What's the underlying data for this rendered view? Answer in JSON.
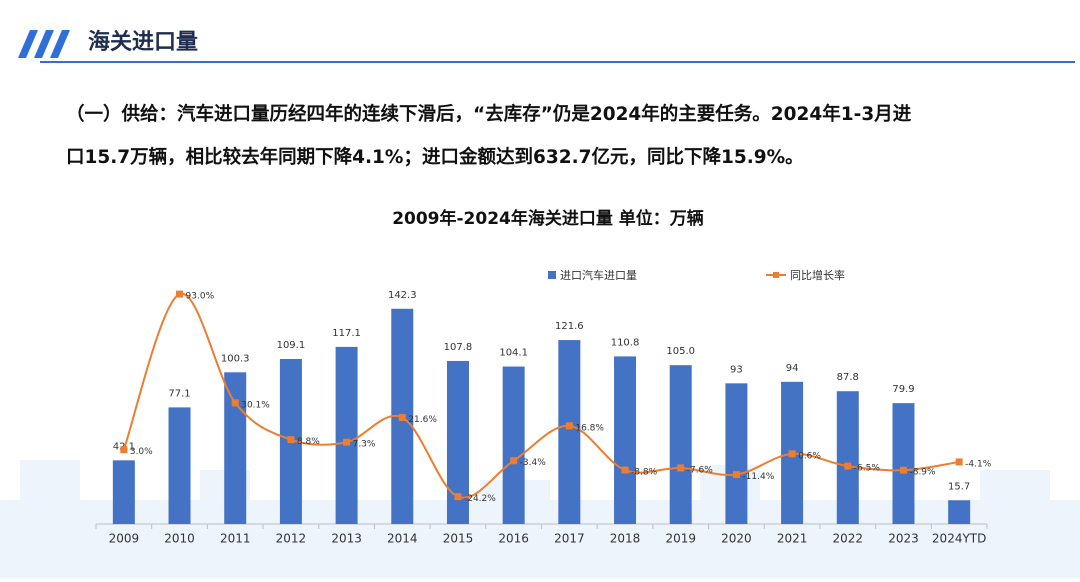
{
  "header": {
    "title": "海关进口量"
  },
  "paragraph": {
    "lines": [
      "（一）供给：汽车进口量历经四年的连续下滑后，“去库存”仍是2024年的主要任务。2024年1-3月进",
      "口15.7万辆，相比较去年同期下降4.1%；进口金额达到632.7亿元，同比下降15.9%。"
    ]
  },
  "chart_data": {
    "type": "bar-line",
    "title": "2009年-2024年海关进口量  单位：万辆",
    "categories": [
      "2009",
      "2010",
      "2011",
      "2012",
      "2013",
      "2014",
      "2015",
      "2016",
      "2017",
      "2018",
      "2019",
      "2020",
      "2021",
      "2022",
      "2023",
      "2024YTD"
    ],
    "series": [
      {
        "name": "进口汽车进口量",
        "type": "bar",
        "color": "#4472c4",
        "values": [
          42.1,
          77.1,
          100.3,
          109.1,
          117.1,
          142.3,
          107.8,
          104.1,
          121.6,
          110.8,
          105.0,
          93,
          94,
          87.8,
          79.9,
          15.7
        ],
        "value_labels": [
          "42.1",
          "77.1",
          "100.3",
          "109.1",
          "117.1",
          "142.3",
          "107.8",
          "104.1",
          "121.6",
          "110.8",
          "105.0",
          "93",
          "94",
          "87.8",
          "79.9",
          "15.7"
        ]
      },
      {
        "name": "同比增长率",
        "type": "line",
        "axis": "y2",
        "color": "#ed7d31",
        "values": [
          3.0,
          93.0,
          30.1,
          8.8,
          7.3,
          21.6,
          -24.2,
          -3.4,
          16.8,
          -8.8,
          -7.6,
          -11.4,
          0.6,
          -6.5,
          -8.9,
          -4.1
        ],
        "value_labels": [
          "3.0%",
          "93.0%",
          "30.1%",
          "8.8%",
          "7.3%",
          "21.6%",
          "-24.2%",
          "-3.4%",
          "16.8%",
          "-8.8%",
          "-7.6%",
          "-11.4%",
          "0.6%",
          "-6.5%",
          "-8.9%",
          "-4.1%"
        ]
      }
    ],
    "ylim": [
      0,
      160
    ],
    "y2lim": [
      -40,
      100
    ],
    "legend": "top"
  }
}
